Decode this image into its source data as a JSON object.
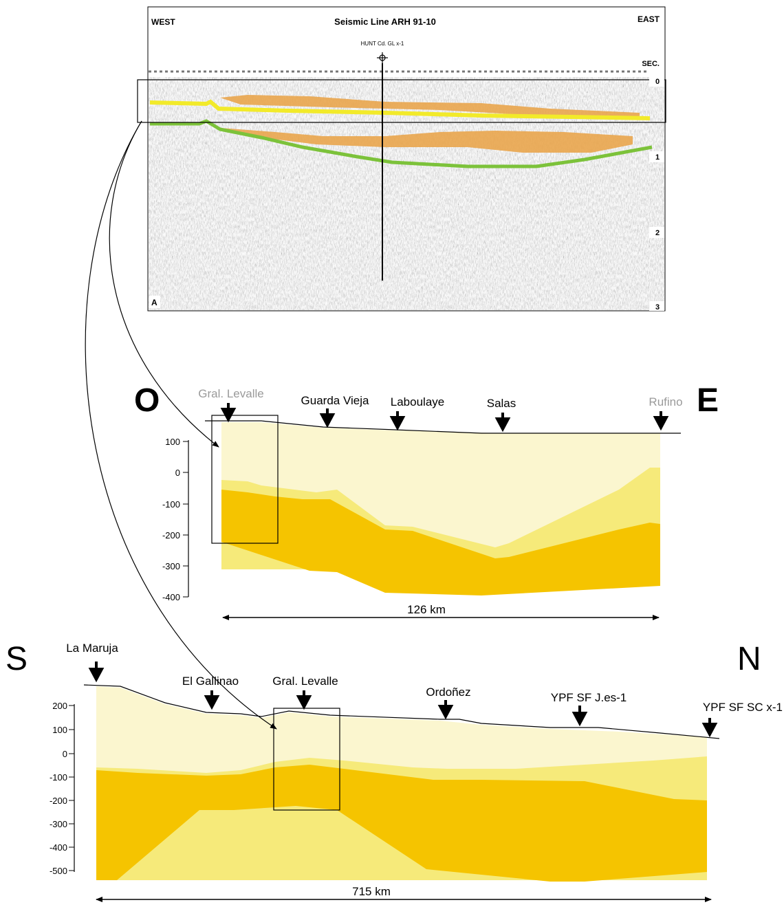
{
  "seismic": {
    "west_label": "WEST",
    "east_label": "EAST",
    "title": "Seismic Line ARH 91-10",
    "well_label": "HUNT Cd. GL x-1",
    "sec_label": "SEC.",
    "panel_letter": "A",
    "time_ticks": [
      "0",
      "1",
      "2",
      "3"
    ],
    "colors": {
      "yellow_horizon": "#f2ea2a",
      "green_horizon": "#7cc23a",
      "orange_fill": "#e9a54c"
    }
  },
  "section_oe": {
    "left_letter": "O",
    "right_letter": "E",
    "places": [
      {
        "name": "Gral. Levalle",
        "muted": true
      },
      {
        "name": "Guarda Vieja",
        "muted": false
      },
      {
        "name": "Laboulaye",
        "muted": false
      },
      {
        "name": "Salas",
        "muted": false
      },
      {
        "name": "Rufino",
        "muted": true
      }
    ],
    "y_ticks": [
      "100",
      "0",
      "-100",
      "-200",
      "-300",
      "-400"
    ],
    "distance_label": "126 km"
  },
  "section_sn": {
    "left_letter": "S",
    "right_letter": "N",
    "places": [
      {
        "name": "La Maruja"
      },
      {
        "name": "El Gallinao"
      },
      {
        "name": "Gral. Levalle"
      },
      {
        "name": "Ordoñez"
      },
      {
        "name": "YPF SF J.es-1"
      },
      {
        "name": "YPF SF SC x-1"
      }
    ],
    "y_ticks": [
      "200",
      "100",
      "0",
      "-100",
      "-200",
      "-300",
      "-400",
      "-500"
    ],
    "distance_label": "715 km"
  },
  "colors": {
    "layer_top": "#fbf6cf",
    "layer_mid": "#f6ea7a",
    "layer_bottom": "#f5c400",
    "muted_text": "#9a9a9a"
  }
}
